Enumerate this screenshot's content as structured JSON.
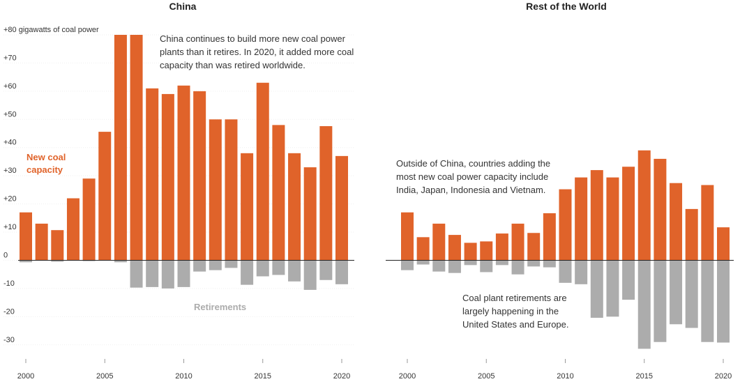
{
  "chart_data": [
    {
      "type": "bar",
      "title": "China",
      "x": [
        2000,
        2001,
        2002,
        2003,
        2004,
        2005,
        2006,
        2007,
        2008,
        2009,
        2010,
        2011,
        2012,
        2013,
        2014,
        2015,
        2016,
        2017,
        2018,
        2019,
        2020
      ],
      "xticks": [
        2000,
        2005,
        2010,
        2015,
        2020
      ],
      "ylim": [
        -35,
        80
      ],
      "yticks": [
        {
          "value": 80,
          "label": "+80 gigawatts of coal power"
        },
        {
          "value": 70,
          "label": "+70"
        },
        {
          "value": 60,
          "label": "+60"
        },
        {
          "value": 50,
          "label": "+50"
        },
        {
          "value": 40,
          "label": "+40"
        },
        {
          "value": 30,
          "label": "+30"
        },
        {
          "value": 20,
          "label": "+20"
        },
        {
          "value": 10,
          "label": "+10"
        },
        0,
        -10,
        -20,
        -30
      ],
      "series": [
        {
          "name": "New coal capacity",
          "color": "#e0632a",
          "values": [
            17,
            13,
            10.7,
            22,
            29,
            45.6,
            80,
            80,
            61,
            59,
            62,
            60,
            50,
            50,
            38,
            63,
            48,
            38,
            33,
            47.6,
            37
          ]
        },
        {
          "name": "Retirements",
          "color": "#acacac",
          "values": [
            -0.7,
            0,
            -0.5,
            0,
            -0.3,
            0,
            -0.7,
            -9.7,
            -9.5,
            -10,
            -9.5,
            -4,
            -3.5,
            -2.7,
            -8.7,
            -5.7,
            -5.2,
            -7.5,
            -10.5,
            -7,
            -8.5
          ]
        }
      ],
      "annotations": [
        "China continues to build more new coal power plants than it retires. In 2020, it added more coal capacity than was retired worldwide."
      ]
    },
    {
      "type": "bar",
      "title": "Rest of the World",
      "x": [
        2000,
        2001,
        2002,
        2003,
        2004,
        2005,
        2006,
        2007,
        2008,
        2009,
        2010,
        2011,
        2012,
        2013,
        2014,
        2015,
        2016,
        2017,
        2018,
        2019,
        2020
      ],
      "xticks": [
        2000,
        2005,
        2010,
        2015,
        2020
      ],
      "ylim": [
        -35,
        80
      ],
      "series": [
        {
          "color": "#e0632a",
          "values": [
            17,
            8.2,
            13,
            9,
            6.2,
            6.7,
            9.5,
            13,
            9.7,
            16.7,
            25.2,
            29.4,
            32,
            29.4,
            33.2,
            39,
            36,
            27.4,
            18.2,
            26.7,
            11.7
          ]
        },
        {
          "color": "#acacac",
          "values": [
            -3.5,
            -1.5,
            -4,
            -4.5,
            -1.7,
            -4.2,
            -1.7,
            -5,
            -2.2,
            -2.5,
            -8,
            -8.5,
            -20.4,
            -20,
            -14,
            -31.4,
            -29,
            -22.7,
            -24,
            -29,
            -29.2
          ]
        }
      ],
      "annotations": [
        "Outside of China, countries adding the most new coal power capacity include India, Japan, Indonesia and Vietnam.",
        "Coal plant retirements are largely happening in the United States and Europe."
      ]
    }
  ]
}
